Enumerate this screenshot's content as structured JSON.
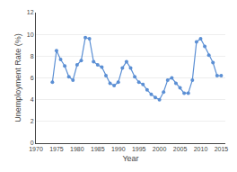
{
  "chart_data": {
    "type": "line",
    "xlabel": "Year",
    "ylabel": "Unemployment Rate (%)",
    "x": [
      1974,
      1975,
      1976,
      1977,
      1978,
      1979,
      1980,
      1981,
      1982,
      1983,
      1984,
      1985,
      1986,
      1987,
      1988,
      1989,
      1990,
      1991,
      1992,
      1993,
      1994,
      1995,
      1996,
      1997,
      1998,
      1999,
      2000,
      2001,
      2002,
      2003,
      2004,
      2005,
      2006,
      2007,
      2008,
      2009,
      2010,
      2011,
      2012,
      2013,
      2014,
      2015
    ],
    "values": [
      5.6,
      8.5,
      7.7,
      7.1,
      6.1,
      5.8,
      7.2,
      7.6,
      9.7,
      9.6,
      7.5,
      7.2,
      7.0,
      6.2,
      5.5,
      5.3,
      5.6,
      6.9,
      7.5,
      6.9,
      6.1,
      5.6,
      5.4,
      4.9,
      4.5,
      4.2,
      4.0,
      4.7,
      5.8,
      6.0,
      5.5,
      5.1,
      4.6,
      4.6,
      5.8,
      9.3,
      9.6,
      8.9,
      8.1,
      7.4,
      6.2,
      6.2
    ],
    "color": "#5b8fd4",
    "marker": "circle",
    "xlim": [
      1970,
      2016
    ],
    "xticks": [
      1970,
      1975,
      1980,
      1985,
      1990,
      1995,
      2000,
      2005,
      2010,
      2015
    ],
    "ylim": [
      0,
      12
    ],
    "yticks": [
      0,
      2,
      4,
      6,
      8,
      10,
      12
    ],
    "grid": true
  }
}
